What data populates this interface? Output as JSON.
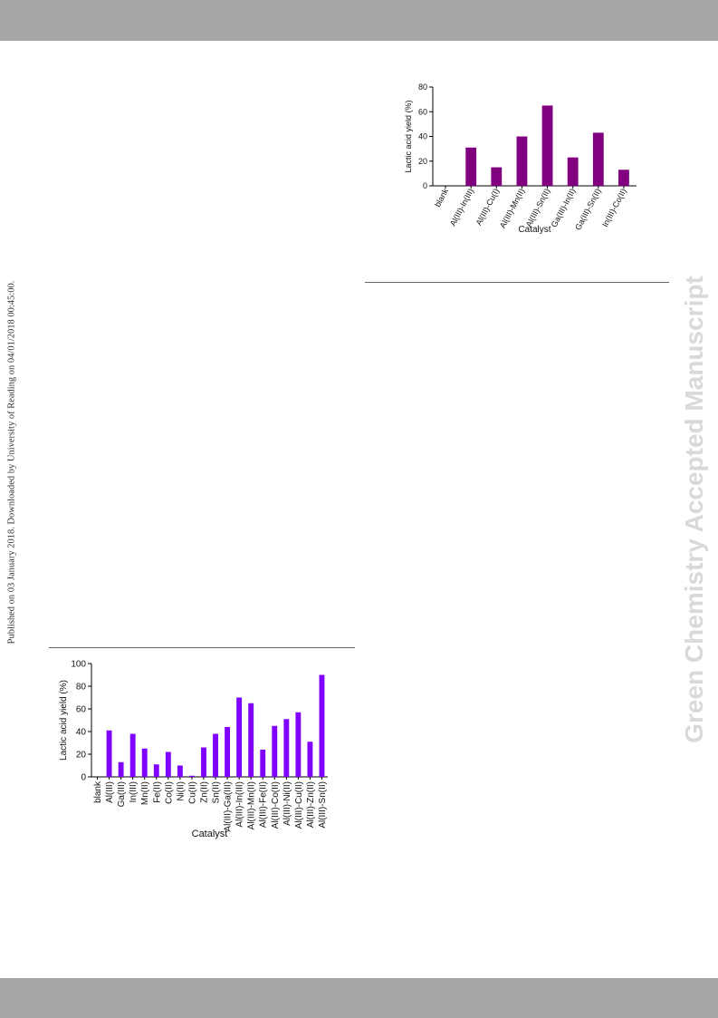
{
  "page": {
    "side_note_left": "Published on 03 January 2018. Downloaded by University of Reading on 04/01/2018 00:45:00.",
    "side_note_right": "Green Chemistry Accepted Manuscript",
    "band_color": "#a6a6a6",
    "watermark_color": "#d9d9d9"
  },
  "chart_data": [
    {
      "type": "bar",
      "title": "",
      "xlabel": "Catalyst",
      "ylabel": "Lactic acid yield (%)",
      "ylim": [
        0,
        80
      ],
      "yticks": [
        0,
        20,
        40,
        60,
        80
      ],
      "grid": false,
      "legend": "none",
      "color": "#800080",
      "categories": [
        "blank",
        "Al(III)-In(III)",
        "Al(III)-Cu(I)",
        "Al(III)-Mn(II)",
        "Al(III)-Sn(II)",
        "Ga(III)-In(II)",
        "Ga(III)-Sn(II)",
        "In(III)-Co(II)"
      ],
      "values": [
        0,
        31,
        15,
        40,
        65,
        23,
        43,
        13
      ]
    },
    {
      "type": "bar",
      "title": "",
      "xlabel": "Catalyst",
      "ylabel": "Lactic acid yield (%)",
      "ylim": [
        0,
        100
      ],
      "yticks": [
        0,
        20,
        40,
        60,
        80,
        100
      ],
      "grid": false,
      "legend": "none",
      "color": "#7f00ff",
      "categories": [
        "blank",
        "Al(III)",
        "Ga(III)",
        "In(III)",
        "Mn(II)",
        "Fe(II)",
        "Co(II)",
        "Ni(II)",
        "Cu(II)",
        "Zn(II)",
        "Sn(II)",
        "Al(III)-Ga(III)",
        "Al(III)-In(III)",
        "Al(III)-Mn(II)",
        "Al(III)-Fe(II)",
        "Al(III)-Co(II)",
        "Al(III)-Ni(II)",
        "Al(III)-Cu(II)",
        "Al(III)-Zn(II)",
        "Al(III)-Sn(II)"
      ],
      "values": [
        0,
        41,
        13,
        38,
        25,
        11,
        22,
        10,
        1,
        26,
        38,
        44,
        70,
        65,
        24,
        45,
        51,
        57,
        31,
        90
      ]
    }
  ]
}
